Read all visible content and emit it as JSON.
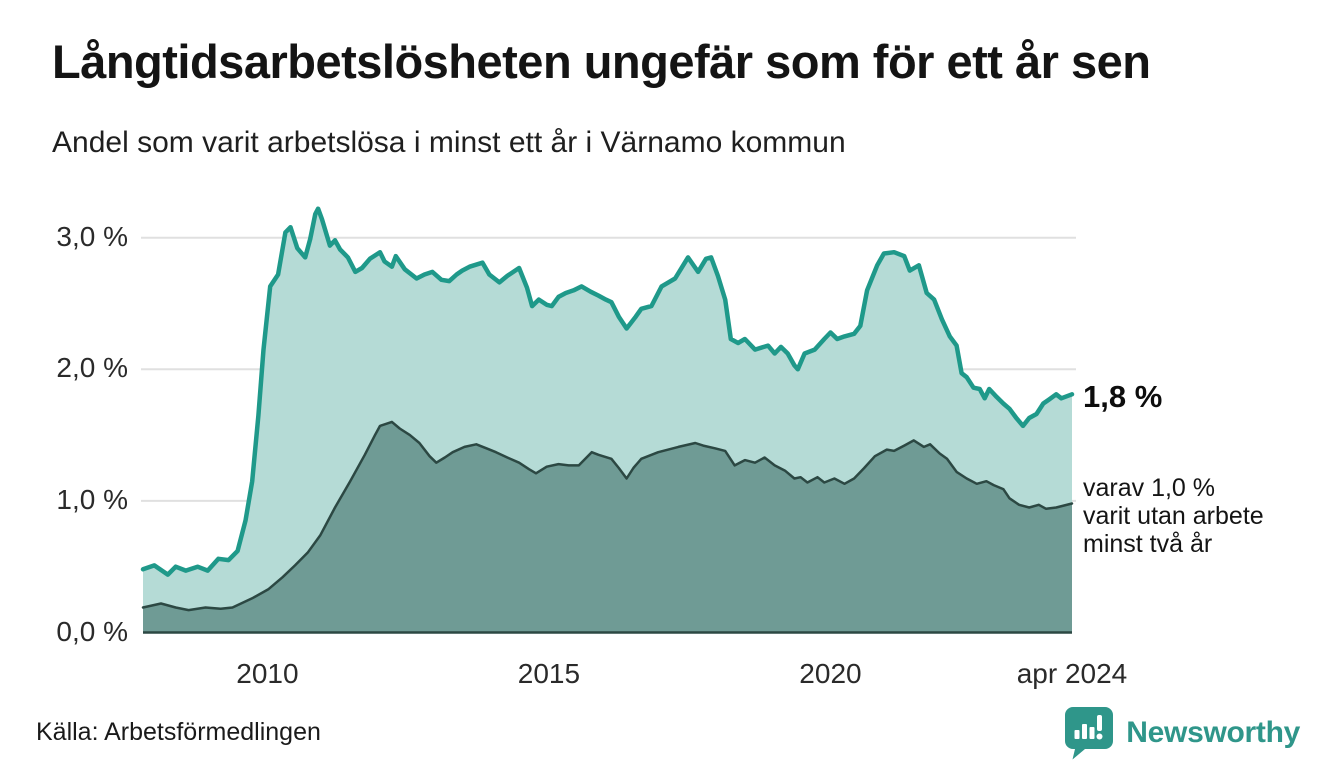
{
  "header": {
    "title": "Långtidsarbetslösheten ungefär som för ett år sen",
    "subtitle": "Andel som varit arbetslösa i minst ett år i Värnamo kommun"
  },
  "footer": {
    "source": "Källa: Arbetsförmedlingen",
    "brand": "Newsworthy"
  },
  "colors": {
    "accent_teal": "#1f998a",
    "light_fill": "#b5dbd6",
    "dark_fill": "#6f9b95",
    "dark_line": "#2c4843",
    "gridline": "#e0e0e0",
    "brand_teal": "#2f968a",
    "text": "#141414"
  },
  "chart_data": {
    "type": "area",
    "title": "Långtidsarbetslösheten ungefär som för ett år sen",
    "subtitle": "Andel som varit arbetslösa i minst ett år i Värnamo kommun",
    "unit": "%",
    "x_unit": "year (decimal, monthly data)",
    "xlim": [
      2007.79,
      2024.29
    ],
    "ylim": [
      0,
      3.35
    ],
    "grid": "horizontal",
    "x_ticks": [
      {
        "x": 2010,
        "label": "2010"
      },
      {
        "x": 2015,
        "label": "2015"
      },
      {
        "x": 2020,
        "label": "2020"
      },
      {
        "x": 2024.29,
        "label": "apr 2024"
      }
    ],
    "y_ticks": [
      {
        "y": 0,
        "label": "0,0 %"
      },
      {
        "y": 1,
        "label": "1,0 %"
      },
      {
        "y": 2,
        "label": "2,0 %"
      },
      {
        "y": 3,
        "label": "3,0 %"
      }
    ],
    "annotations": {
      "total": {
        "label": "1,8 %"
      },
      "subset": {
        "lines": [
          "varav 1,0 %",
          "varit utan arbete",
          "minst två år"
        ]
      }
    },
    "series": [
      {
        "name": "Andel arbetslösa minst ett år",
        "line_color": "#1f998a",
        "fill_color": "#b5dbd6",
        "line_width": 4.5,
        "end_value": 1.8,
        "points": [
          [
            2007.79,
            0.48
          ],
          [
            2007.99,
            0.51
          ],
          [
            2008.23,
            0.44
          ],
          [
            2008.37,
            0.5
          ],
          [
            2008.55,
            0.47
          ],
          [
            2008.76,
            0.5
          ],
          [
            2008.94,
            0.47
          ],
          [
            2009.13,
            0.56
          ],
          [
            2009.31,
            0.55
          ],
          [
            2009.47,
            0.62
          ],
          [
            2009.61,
            0.85
          ],
          [
            2009.73,
            1.15
          ],
          [
            2009.84,
            1.65
          ],
          [
            2009.93,
            2.15
          ],
          [
            2010.05,
            2.63
          ],
          [
            2010.19,
            2.72
          ],
          [
            2010.32,
            3.04
          ],
          [
            2010.41,
            3.08
          ],
          [
            2010.53,
            2.92
          ],
          [
            2010.67,
            2.85
          ],
          [
            2010.76,
            2.99
          ],
          [
            2010.85,
            3.18
          ],
          [
            2010.9,
            3.22
          ],
          [
            2010.97,
            3.14
          ],
          [
            2011.11,
            2.94
          ],
          [
            2011.2,
            2.98
          ],
          [
            2011.29,
            2.91
          ],
          [
            2011.43,
            2.85
          ],
          [
            2011.56,
            2.74
          ],
          [
            2011.68,
            2.77
          ],
          [
            2011.82,
            2.84
          ],
          [
            2012.0,
            2.89
          ],
          [
            2012.08,
            2.82
          ],
          [
            2012.21,
            2.78
          ],
          [
            2012.28,
            2.86
          ],
          [
            2012.44,
            2.76
          ],
          [
            2012.65,
            2.69
          ],
          [
            2012.79,
            2.72
          ],
          [
            2012.93,
            2.74
          ],
          [
            2013.09,
            2.68
          ],
          [
            2013.23,
            2.67
          ],
          [
            2013.36,
            2.72
          ],
          [
            2013.46,
            2.75
          ],
          [
            2013.59,
            2.78
          ],
          [
            2013.82,
            2.81
          ],
          [
            2013.94,
            2.72
          ],
          [
            2014.12,
            2.66
          ],
          [
            2014.26,
            2.71
          ],
          [
            2014.47,
            2.77
          ],
          [
            2014.61,
            2.62
          ],
          [
            2014.7,
            2.48
          ],
          [
            2014.82,
            2.53
          ],
          [
            2014.96,
            2.49
          ],
          [
            2015.05,
            2.48
          ],
          [
            2015.17,
            2.55
          ],
          [
            2015.3,
            2.58
          ],
          [
            2015.44,
            2.6
          ],
          [
            2015.58,
            2.63
          ],
          [
            2015.74,
            2.59
          ],
          [
            2015.88,
            2.56
          ],
          [
            2016.01,
            2.53
          ],
          [
            2016.11,
            2.51
          ],
          [
            2016.24,
            2.4
          ],
          [
            2016.38,
            2.31
          ],
          [
            2016.54,
            2.4
          ],
          [
            2016.64,
            2.46
          ],
          [
            2016.82,
            2.48
          ],
          [
            2017.0,
            2.63
          ],
          [
            2017.24,
            2.69
          ],
          [
            2017.47,
            2.85
          ],
          [
            2017.65,
            2.74
          ],
          [
            2017.79,
            2.84
          ],
          [
            2017.88,
            2.85
          ],
          [
            2018.0,
            2.71
          ],
          [
            2018.13,
            2.53
          ],
          [
            2018.23,
            2.23
          ],
          [
            2018.36,
            2.2
          ],
          [
            2018.48,
            2.23
          ],
          [
            2018.66,
            2.15
          ],
          [
            2018.89,
            2.18
          ],
          [
            2019.01,
            2.12
          ],
          [
            2019.12,
            2.17
          ],
          [
            2019.24,
            2.12
          ],
          [
            2019.36,
            2.03
          ],
          [
            2019.42,
            2.0
          ],
          [
            2019.54,
            2.12
          ],
          [
            2019.72,
            2.15
          ],
          [
            2019.89,
            2.23
          ],
          [
            2020.0,
            2.28
          ],
          [
            2020.12,
            2.23
          ],
          [
            2020.25,
            2.25
          ],
          [
            2020.42,
            2.27
          ],
          [
            2020.53,
            2.33
          ],
          [
            2020.65,
            2.6
          ],
          [
            2020.83,
            2.79
          ],
          [
            2020.95,
            2.88
          ],
          [
            2021.13,
            2.89
          ],
          [
            2021.31,
            2.86
          ],
          [
            2021.41,
            2.75
          ],
          [
            2021.57,
            2.79
          ],
          [
            2021.71,
            2.58
          ],
          [
            2021.84,
            2.53
          ],
          [
            2021.98,
            2.38
          ],
          [
            2022.12,
            2.25
          ],
          [
            2022.24,
            2.18
          ],
          [
            2022.33,
            1.97
          ],
          [
            2022.42,
            1.94
          ],
          [
            2022.54,
            1.86
          ],
          [
            2022.65,
            1.85
          ],
          [
            2022.74,
            1.78
          ],
          [
            2022.82,
            1.85
          ],
          [
            2022.95,
            1.79
          ],
          [
            2023.07,
            1.74
          ],
          [
            2023.18,
            1.7
          ],
          [
            2023.3,
            1.63
          ],
          [
            2023.42,
            1.57
          ],
          [
            2023.53,
            1.63
          ],
          [
            2023.66,
            1.66
          ],
          [
            2023.78,
            1.74
          ],
          [
            2023.88,
            1.77
          ],
          [
            2024.01,
            1.81
          ],
          [
            2024.1,
            1.78
          ],
          [
            2024.29,
            1.81
          ]
        ]
      },
      {
        "name": "varav utan arbete minst två år",
        "line_color": "#2c4843",
        "fill_color": "#6f9b95",
        "line_width": 2.5,
        "end_value": 1.0,
        "points": [
          [
            2007.79,
            0.19
          ],
          [
            2008.11,
            0.22
          ],
          [
            2008.37,
            0.19
          ],
          [
            2008.6,
            0.17
          ],
          [
            2008.9,
            0.19
          ],
          [
            2009.17,
            0.18
          ],
          [
            2009.38,
            0.19
          ],
          [
            2009.73,
            0.26
          ],
          [
            2010.02,
            0.33
          ],
          [
            2010.27,
            0.42
          ],
          [
            2010.49,
            0.51
          ],
          [
            2010.72,
            0.61
          ],
          [
            2010.94,
            0.74
          ],
          [
            2011.2,
            0.95
          ],
          [
            2011.47,
            1.15
          ],
          [
            2011.73,
            1.35
          ],
          [
            2011.91,
            1.5
          ],
          [
            2012.0,
            1.57
          ],
          [
            2012.21,
            1.6
          ],
          [
            2012.35,
            1.55
          ],
          [
            2012.53,
            1.5
          ],
          [
            2012.7,
            1.44
          ],
          [
            2012.88,
            1.34
          ],
          [
            2013.0,
            1.29
          ],
          [
            2013.15,
            1.33
          ],
          [
            2013.29,
            1.37
          ],
          [
            2013.5,
            1.41
          ],
          [
            2013.71,
            1.43
          ],
          [
            2013.89,
            1.4
          ],
          [
            2014.06,
            1.37
          ],
          [
            2014.26,
            1.33
          ],
          [
            2014.47,
            1.29
          ],
          [
            2014.65,
            1.24
          ],
          [
            2014.77,
            1.21
          ],
          [
            2014.96,
            1.26
          ],
          [
            2015.17,
            1.28
          ],
          [
            2015.35,
            1.27
          ],
          [
            2015.53,
            1.27
          ],
          [
            2015.76,
            1.37
          ],
          [
            2015.88,
            1.35
          ],
          [
            2016.11,
            1.32
          ],
          [
            2016.24,
            1.25
          ],
          [
            2016.38,
            1.17
          ],
          [
            2016.5,
            1.25
          ],
          [
            2016.64,
            1.32
          ],
          [
            2016.94,
            1.37
          ],
          [
            2017.3,
            1.41
          ],
          [
            2017.6,
            1.44
          ],
          [
            2017.74,
            1.42
          ],
          [
            2017.95,
            1.4
          ],
          [
            2018.13,
            1.38
          ],
          [
            2018.3,
            1.27
          ],
          [
            2018.48,
            1.31
          ],
          [
            2018.66,
            1.29
          ],
          [
            2018.83,
            1.33
          ],
          [
            2019.01,
            1.27
          ],
          [
            2019.19,
            1.23
          ],
          [
            2019.36,
            1.17
          ],
          [
            2019.47,
            1.18
          ],
          [
            2019.59,
            1.14
          ],
          [
            2019.77,
            1.18
          ],
          [
            2019.89,
            1.14
          ],
          [
            2020.07,
            1.17
          ],
          [
            2020.25,
            1.13
          ],
          [
            2020.42,
            1.17
          ],
          [
            2020.6,
            1.25
          ],
          [
            2020.79,
            1.34
          ],
          [
            2021.0,
            1.39
          ],
          [
            2021.13,
            1.38
          ],
          [
            2021.31,
            1.42
          ],
          [
            2021.48,
            1.46
          ],
          [
            2021.66,
            1.41
          ],
          [
            2021.77,
            1.43
          ],
          [
            2021.94,
            1.36
          ],
          [
            2022.07,
            1.32
          ],
          [
            2022.24,
            1.22
          ],
          [
            2022.42,
            1.17
          ],
          [
            2022.6,
            1.13
          ],
          [
            2022.77,
            1.15
          ],
          [
            2022.9,
            1.12
          ],
          [
            2023.07,
            1.09
          ],
          [
            2023.18,
            1.02
          ],
          [
            2023.35,
            0.97
          ],
          [
            2023.53,
            0.95
          ],
          [
            2023.7,
            0.97
          ],
          [
            2023.83,
            0.94
          ],
          [
            2024.01,
            0.95
          ],
          [
            2024.29,
            0.98
          ]
        ]
      }
    ]
  }
}
